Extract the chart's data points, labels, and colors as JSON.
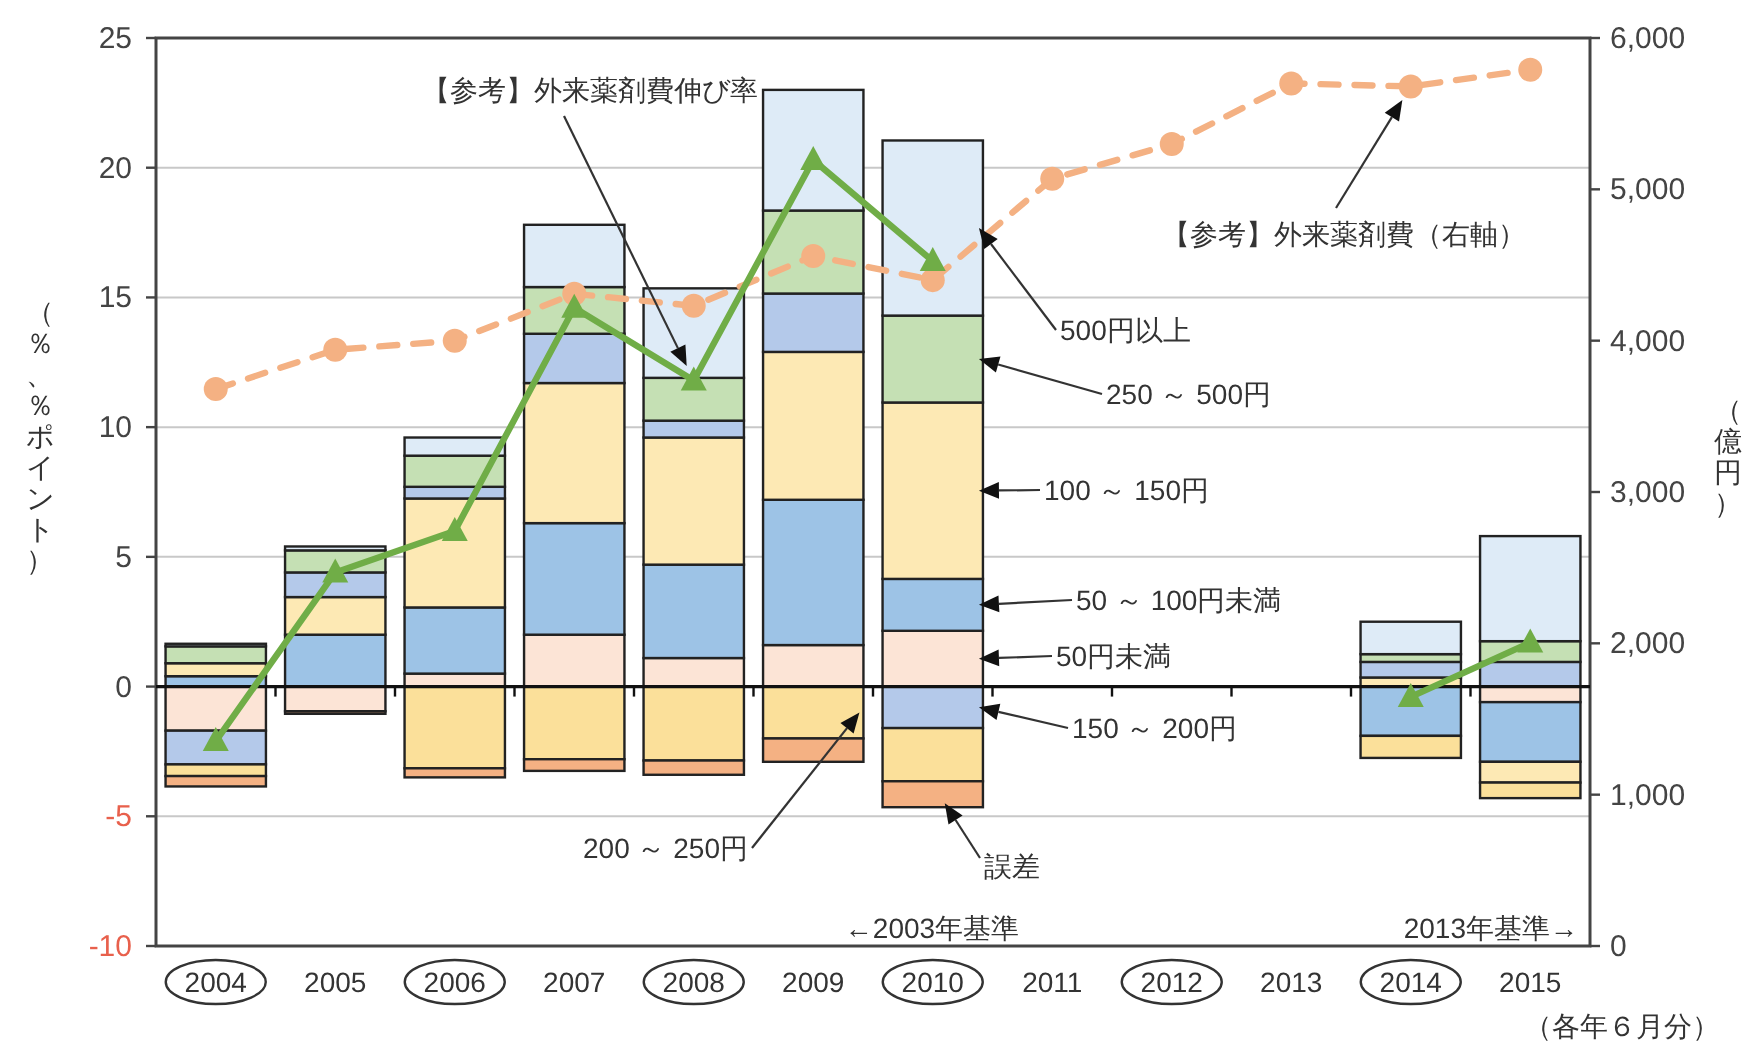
{
  "chart_data": {
    "type": "bar",
    "stacked": true,
    "grid": "y",
    "categories": [
      "2004",
      "2005",
      "2006",
      "2007",
      "2008",
      "2009",
      "2010",
      "2011",
      "2012",
      "2013",
      "2014",
      "2015"
    ],
    "ylabel": "（％、％ポイント）",
    "y2label": "（億円）",
    "ylim": [
      -10,
      25
    ],
    "yticks": [
      -10,
      -5,
      0,
      5,
      10,
      15,
      20,
      25
    ],
    "y2lim": [
      0,
      6000
    ],
    "y2ticks": [
      0,
      {
        "value": 1000,
        "label": "1,000"
      },
      {
        "value": 2000,
        "label": "2,000"
      },
      {
        "value": 3000,
        "label": "3,000"
      },
      {
        "value": 4000,
        "label": "4,000"
      },
      {
        "value": 5000,
        "label": "5,000"
      },
      {
        "value": 6000,
        "label": "6,000"
      }
    ],
    "annotations": [
      "←2003年基準",
      "2013年基準→",
      "（各年６月分）"
    ],
    "series": [
      {
        "name": "50円未満",
        "color": "#fce4d6",
        "values": [
          -1.7,
          -0.95,
          0.5,
          2.0,
          1.1,
          1.6,
          2.15,
          null,
          null,
          null,
          null,
          -0.6
        ]
      },
      {
        "name": "50 ～ 100円未満",
        "color": "#9dc3e6",
        "values": [
          0.4,
          2.0,
          2.55,
          4.3,
          3.6,
          5.6,
          2.0,
          null,
          null,
          null,
          -1.9,
          -2.3
        ]
      },
      {
        "name": "100 ～ 150円",
        "color": "#fde9b4",
        "values": [
          0.5,
          1.45,
          4.2,
          5.4,
          4.9,
          5.7,
          6.8,
          null,
          null,
          null,
          0.35,
          -0.8
        ]
      },
      {
        "name": "150 ～ 200円",
        "color": "#b4c9ea",
        "values": [
          -1.3,
          0.95,
          0.45,
          1.9,
          0.65,
          2.25,
          -1.6,
          null,
          null,
          null,
          0.6,
          0.95
        ]
      },
      {
        "name": "200 ～ 250円",
        "color": "#fbe09a",
        "values": [
          -0.45,
          null,
          -3.15,
          -2.8,
          -2.85,
          -2.0,
          -2.05,
          null,
          null,
          null,
          -0.85,
          -0.6
        ]
      },
      {
        "name": "250 ～ 500円",
        "color": "#c5e0b4",
        "values": [
          0.65,
          0.85,
          1.2,
          1.8,
          1.65,
          3.2,
          3.35,
          null,
          null,
          null,
          0.3,
          0.8
        ]
      },
      {
        "name": "500円以上",
        "color": "#deebf7",
        "values": [
          0.1,
          0.15,
          0.7,
          2.4,
          3.45,
          4.65,
          6.75,
          null,
          null,
          null,
          1.25,
          4.05
        ]
      },
      {
        "name": "誤差",
        "color": "#f4b183",
        "values": [
          -0.4,
          -0.1,
          -0.35,
          -0.45,
          -0.55,
          -0.9,
          -1.0,
          null,
          null,
          null,
          null,
          null
        ]
      },
      {
        "name": "【参考】外来薬剤費（右軸）",
        "type": "line",
        "axis": "y2",
        "color": "#f4b183",
        "marker": "circle",
        "line_style": "dashed",
        "values": [
          3680,
          3940,
          4000,
          4310,
          4230,
          4560,
          4400,
          5070,
          5300,
          5700,
          5680,
          5790
        ]
      },
      {
        "name": "【参考】外来薬剤費伸び率",
        "type": "line",
        "color": "#70ad47",
        "marker": "triangle",
        "line_style": "solid",
        "values": [
          -2.1,
          4.4,
          6.0,
          14.6,
          11.8,
          20.3,
          16.4,
          null,
          null,
          null,
          -0.4,
          1.7
        ]
      }
    ]
  }
}
